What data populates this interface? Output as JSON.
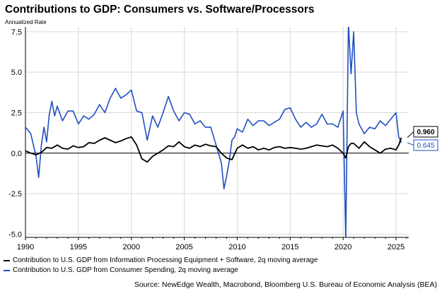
{
  "title": "Contributions to GDP: Consumers vs. Software/Processors",
  "unit_label": "Annualized Rate",
  "source": "Source: NewEdge Wealth, Macrobond, Bloomberg U.S. Bureau of Economic Analysis (BEA)",
  "colors": {
    "it_series": "#000000",
    "consumer_series": "#1f4fbf",
    "grid": "#d9d9d9",
    "axis": "#000000"
  },
  "chart_data": {
    "type": "line",
    "ylim": [
      -5.2,
      7.8
    ],
    "xlim": [
      1990.0,
      2026.2
    ],
    "y_ticks": [
      7.5,
      5.0,
      2.5,
      0.0,
      -2.5,
      -5.0
    ],
    "y_tick_labels": [
      "7.5",
      "5.0",
      "2.5",
      "0.0",
      "-2.5",
      "-5.0"
    ],
    "x_ticks": [
      1990,
      1995,
      2000,
      2005,
      2010,
      2015,
      2020,
      2025
    ],
    "x_tick_labels": [
      "1990",
      "1995",
      "2000",
      "2005",
      "2010",
      "2015",
      "2020",
      "2025"
    ],
    "grid": true,
    "legend_position": "bottom-left",
    "series": [
      {
        "name": "Contribution to U.S. GDP from Information Processing Equipment + Software, 2q moving average",
        "color": "#000000",
        "end_label": "0.960",
        "x": [
          1990.0,
          1990.5,
          1991.0,
          1991.5,
          1992.0,
          1992.5,
          1993.0,
          1993.5,
          1994.0,
          1994.5,
          1995.0,
          1995.5,
          1996.0,
          1996.5,
          1997.0,
          1997.5,
          1998.0,
          1998.5,
          1999.0,
          1999.5,
          2000.0,
          2000.5,
          2001.0,
          2001.5,
          2002.0,
          2002.5,
          2003.0,
          2003.5,
          2004.0,
          2004.5,
          2005.0,
          2005.5,
          2006.0,
          2006.5,
          2007.0,
          2007.5,
          2008.0,
          2008.5,
          2009.0,
          2009.5,
          2010.0,
          2010.5,
          2011.0,
          2011.5,
          2012.0,
          2012.5,
          2013.0,
          2013.5,
          2014.0,
          2014.5,
          2015.0,
          2015.5,
          2016.0,
          2016.5,
          2017.0,
          2017.5,
          2018.0,
          2018.5,
          2019.0,
          2019.5,
          2020.0,
          2020.25,
          2020.5,
          2020.75,
          2021.0,
          2021.5,
          2022.0,
          2022.5,
          2023.0,
          2023.5,
          2024.0,
          2024.5,
          2025.0,
          2025.25,
          2025.5
        ],
        "y": [
          0.15,
          0.0,
          -0.1,
          0.05,
          0.35,
          0.3,
          0.5,
          0.3,
          0.25,
          0.45,
          0.35,
          0.4,
          0.65,
          0.6,
          0.8,
          0.95,
          0.8,
          0.65,
          0.75,
          0.9,
          1.0,
          0.5,
          -0.35,
          -0.55,
          -0.2,
          0.0,
          0.2,
          0.45,
          0.4,
          0.7,
          0.4,
          0.3,
          0.5,
          0.4,
          0.55,
          0.45,
          0.4,
          0.0,
          -0.3,
          -0.4,
          0.3,
          0.5,
          0.3,
          0.4,
          0.2,
          0.3,
          0.2,
          0.35,
          0.4,
          0.3,
          0.35,
          0.3,
          0.25,
          0.3,
          0.4,
          0.5,
          0.45,
          0.4,
          0.5,
          0.3,
          0.0,
          -0.3,
          0.4,
          0.6,
          0.6,
          0.3,
          0.7,
          0.4,
          0.2,
          0.0,
          0.25,
          0.3,
          0.2,
          0.5,
          0.96
        ]
      },
      {
        "name": "Contribution to U.S. GDP from Consumer Spending, 2q moving average",
        "color": "#1f4fbf",
        "end_label": "0.645",
        "x": [
          1990.0,
          1990.5,
          1991.0,
          1991.25,
          1991.5,
          1991.75,
          1992.0,
          1992.25,
          1992.5,
          1992.75,
          1993.0,
          1993.5,
          1994.0,
          1994.5,
          1995.0,
          1995.5,
          1996.0,
          1996.5,
          1997.0,
          1997.5,
          1998.0,
          1998.5,
          1999.0,
          1999.5,
          2000.0,
          2000.5,
          2001.0,
          2001.5,
          2002.0,
          2002.5,
          2003.0,
          2003.5,
          2004.0,
          2004.5,
          2005.0,
          2005.5,
          2006.0,
          2006.5,
          2007.0,
          2007.5,
          2008.0,
          2008.5,
          2008.75,
          2009.0,
          2009.25,
          2009.5,
          2009.75,
          2010.0,
          2010.5,
          2011.0,
          2011.5,
          2012.0,
          2012.5,
          2013.0,
          2013.5,
          2014.0,
          2014.5,
          2015.0,
          2015.5,
          2016.0,
          2016.5,
          2017.0,
          2017.5,
          2018.0,
          2018.5,
          2019.0,
          2019.5,
          2020.0,
          2020.25,
          2020.5,
          2020.75,
          2021.0,
          2021.25,
          2021.5,
          2022.0,
          2022.5,
          2023.0,
          2023.5,
          2024.0,
          2024.5,
          2025.0,
          2025.25,
          2025.5
        ],
        "y": [
          1.6,
          1.2,
          -0.2,
          -1.5,
          0.5,
          1.6,
          0.7,
          2.4,
          3.2,
          2.3,
          2.9,
          2.0,
          2.6,
          2.6,
          1.8,
          2.3,
          2.1,
          2.4,
          3.0,
          2.5,
          3.4,
          4.0,
          3.4,
          3.6,
          3.9,
          2.6,
          2.5,
          0.8,
          2.3,
          1.6,
          2.5,
          3.5,
          2.6,
          2.0,
          2.5,
          2.4,
          1.8,
          2.0,
          1.6,
          1.6,
          0.5,
          -0.6,
          -2.2,
          -1.4,
          -0.5,
          0.8,
          1.0,
          1.5,
          1.3,
          2.1,
          1.7,
          2.0,
          2.0,
          1.7,
          1.9,
          2.1,
          2.7,
          2.8,
          2.1,
          1.6,
          1.9,
          1.6,
          1.8,
          2.4,
          1.8,
          1.8,
          1.6,
          2.6,
          -5.3,
          8.0,
          4.9,
          7.5,
          2.5,
          1.8,
          1.2,
          1.6,
          1.5,
          2.0,
          1.7,
          2.1,
          2.5,
          1.0,
          0.645
        ]
      }
    ]
  },
  "legend": [
    "Contribution to U.S. GDP from Information Processing Equipment + Software, 2q moving average",
    "Contribution to U.S. GDP from Consumer Spending, 2q moving average"
  ]
}
